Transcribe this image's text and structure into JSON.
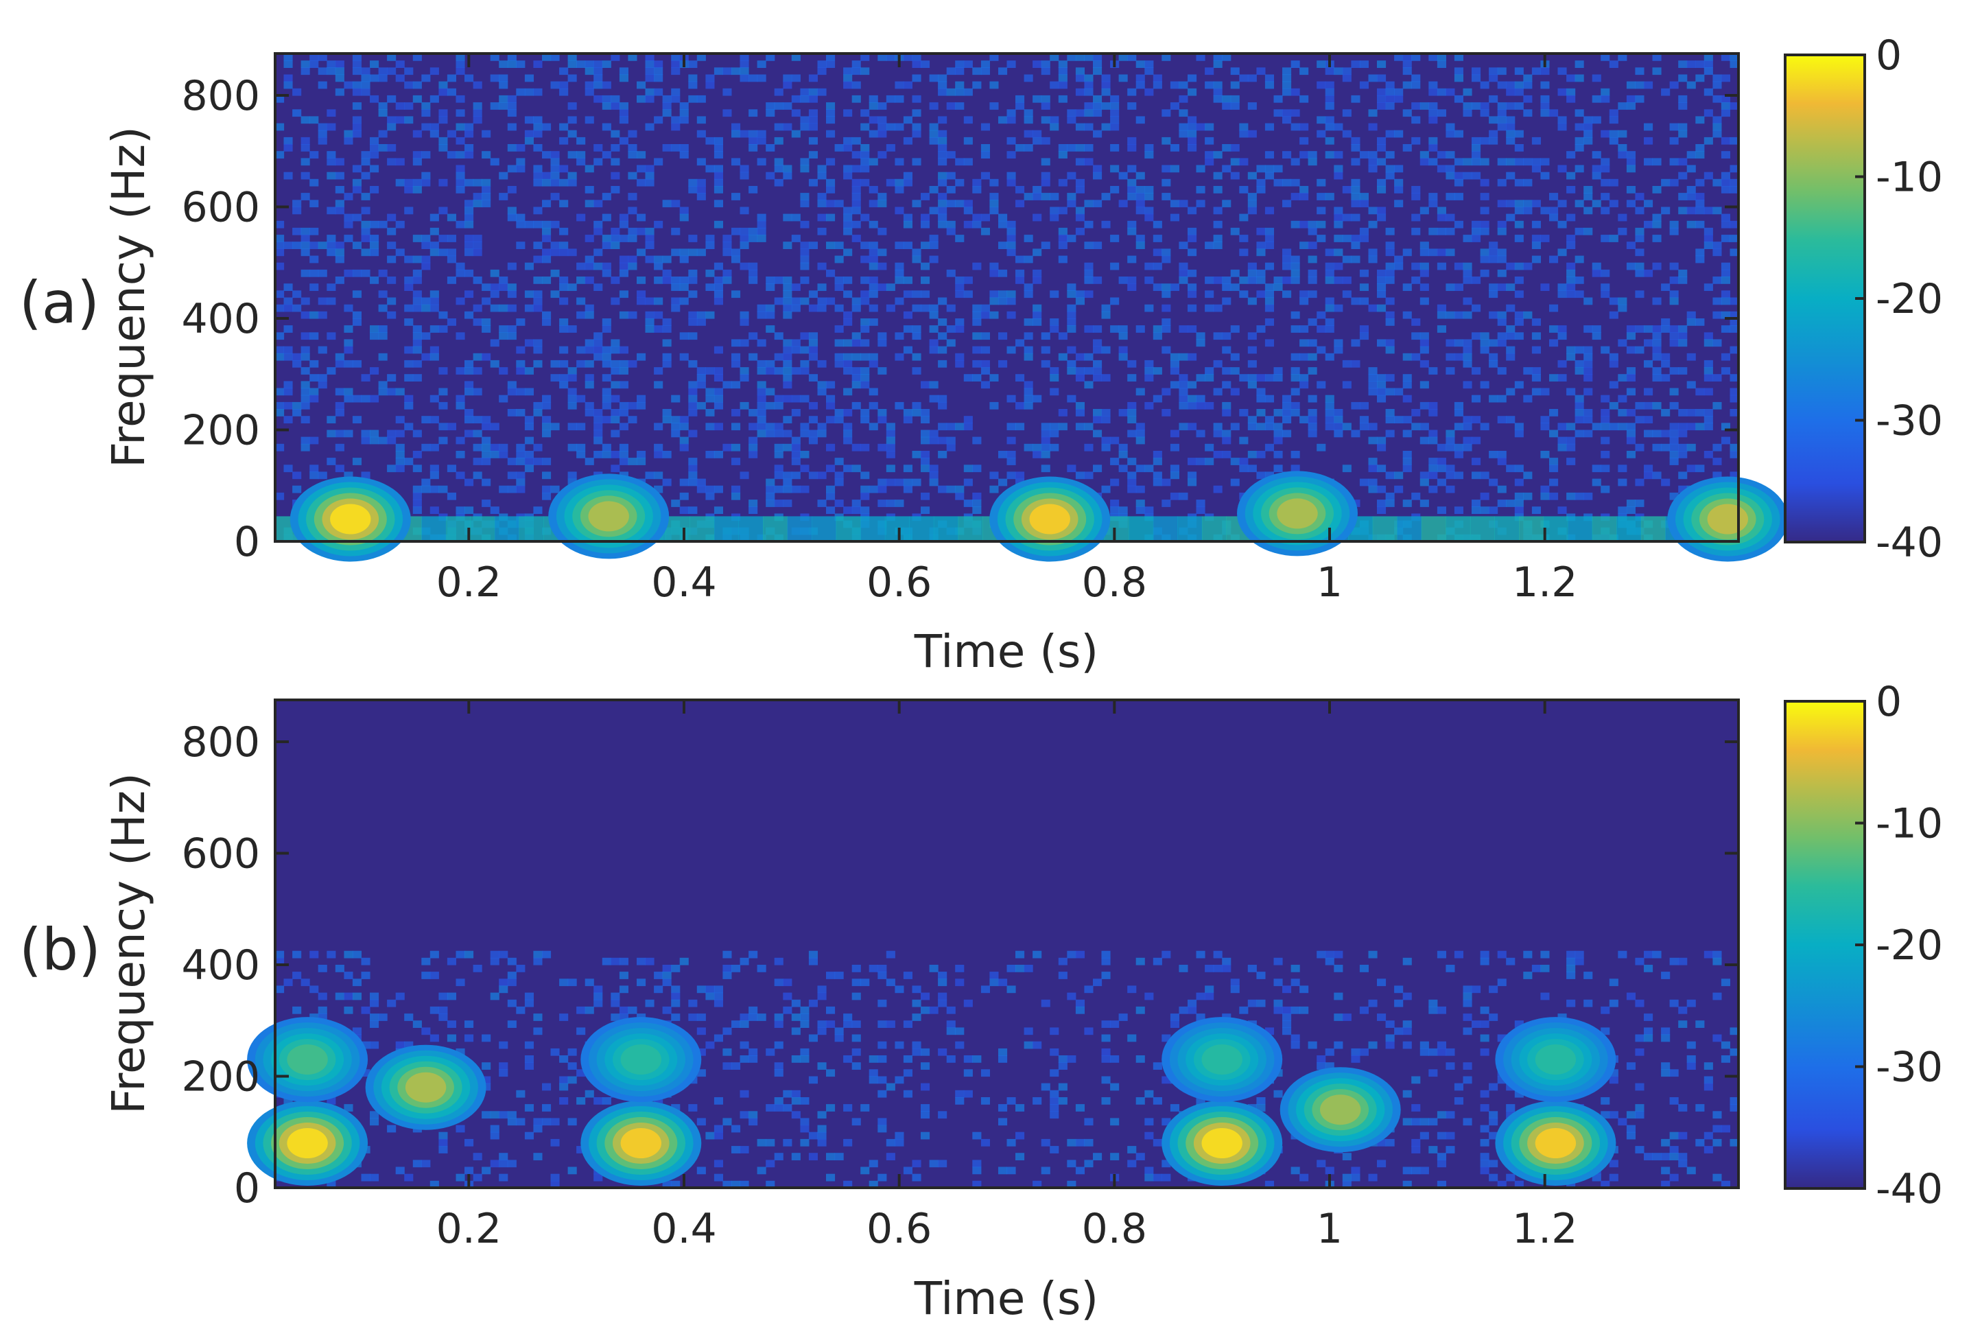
{
  "chart_data": [
    {
      "type": "heatmap",
      "panel_label": "(a)",
      "xlabel": "Time (s)",
      "ylabel": "Frequency (Hz)",
      "xlim": [
        0.02,
        1.38
      ],
      "ylim": [
        0,
        875
      ],
      "xticks": [
        0.2,
        0.4,
        0.6,
        0.8,
        1,
        1.2
      ],
      "xtick_labels": [
        "0.2",
        "0.4",
        "0.6",
        "0.8",
        "1",
        "1.2"
      ],
      "yticks": [
        0,
        200,
        400,
        600,
        800
      ],
      "ytick_labels": [
        "0",
        "200",
        "400",
        "600",
        "800"
      ],
      "colormap": "parula",
      "clim": [
        -40,
        0
      ],
      "colorbar_ticks": [
        0,
        -10,
        -20,
        -30,
        -40
      ],
      "colorbar_labels": [
        "0",
        "-10",
        "-20",
        "-30",
        "-40"
      ],
      "background_level": -40,
      "noise_floor_level": -31,
      "noise_density": 0.3,
      "hot_spots": [
        {
          "t": 0.09,
          "f": 40,
          "level": -2
        },
        {
          "t": 0.33,
          "f": 45,
          "level": -8
        },
        {
          "t": 0.74,
          "f": 40,
          "level": -3
        },
        {
          "t": 0.97,
          "f": 50,
          "level": -8
        },
        {
          "t": 1.37,
          "f": 40,
          "level": -7
        }
      ],
      "baseline_band": {
        "f_max": 45,
        "level": -20
      }
    },
    {
      "type": "heatmap",
      "panel_label": "(b)",
      "xlabel": "Time (s)",
      "ylabel": "Frequency (Hz)",
      "xlim": [
        0.02,
        1.38
      ],
      "ylim": [
        0,
        875
      ],
      "xticks": [
        0.2,
        0.4,
        0.6,
        0.8,
        1,
        1.2
      ],
      "xtick_labels": [
        "0.2",
        "0.4",
        "0.6",
        "0.8",
        "1",
        "1.2"
      ],
      "yticks": [
        0,
        200,
        400,
        600,
        800
      ],
      "ytick_labels": [
        "0",
        "200",
        "400",
        "600",
        "800"
      ],
      "colormap": "parula",
      "clim": [
        -40,
        0
      ],
      "colorbar_ticks": [
        0,
        -10,
        -20,
        -30,
        -40
      ],
      "colorbar_labels": [
        "0",
        "-10",
        "-20",
        "-30",
        "-40"
      ],
      "background_level": -40,
      "noise_floor_level": -31,
      "noise_density": 0.18,
      "noise_f_max": 430,
      "hot_spots": [
        {
          "t": 0.05,
          "f": 80,
          "level": -2
        },
        {
          "t": 0.05,
          "f": 230,
          "level": -14
        },
        {
          "t": 0.16,
          "f": 180,
          "level": -8
        },
        {
          "t": 0.36,
          "f": 80,
          "level": -3
        },
        {
          "t": 0.36,
          "f": 230,
          "level": -16
        },
        {
          "t": 0.9,
          "f": 80,
          "level": -2
        },
        {
          "t": 0.9,
          "f": 230,
          "level": -16
        },
        {
          "t": 1.01,
          "f": 140,
          "level": -9
        },
        {
          "t": 1.21,
          "f": 80,
          "level": -3
        },
        {
          "t": 1.21,
          "f": 230,
          "level": -16
        }
      ]
    }
  ]
}
